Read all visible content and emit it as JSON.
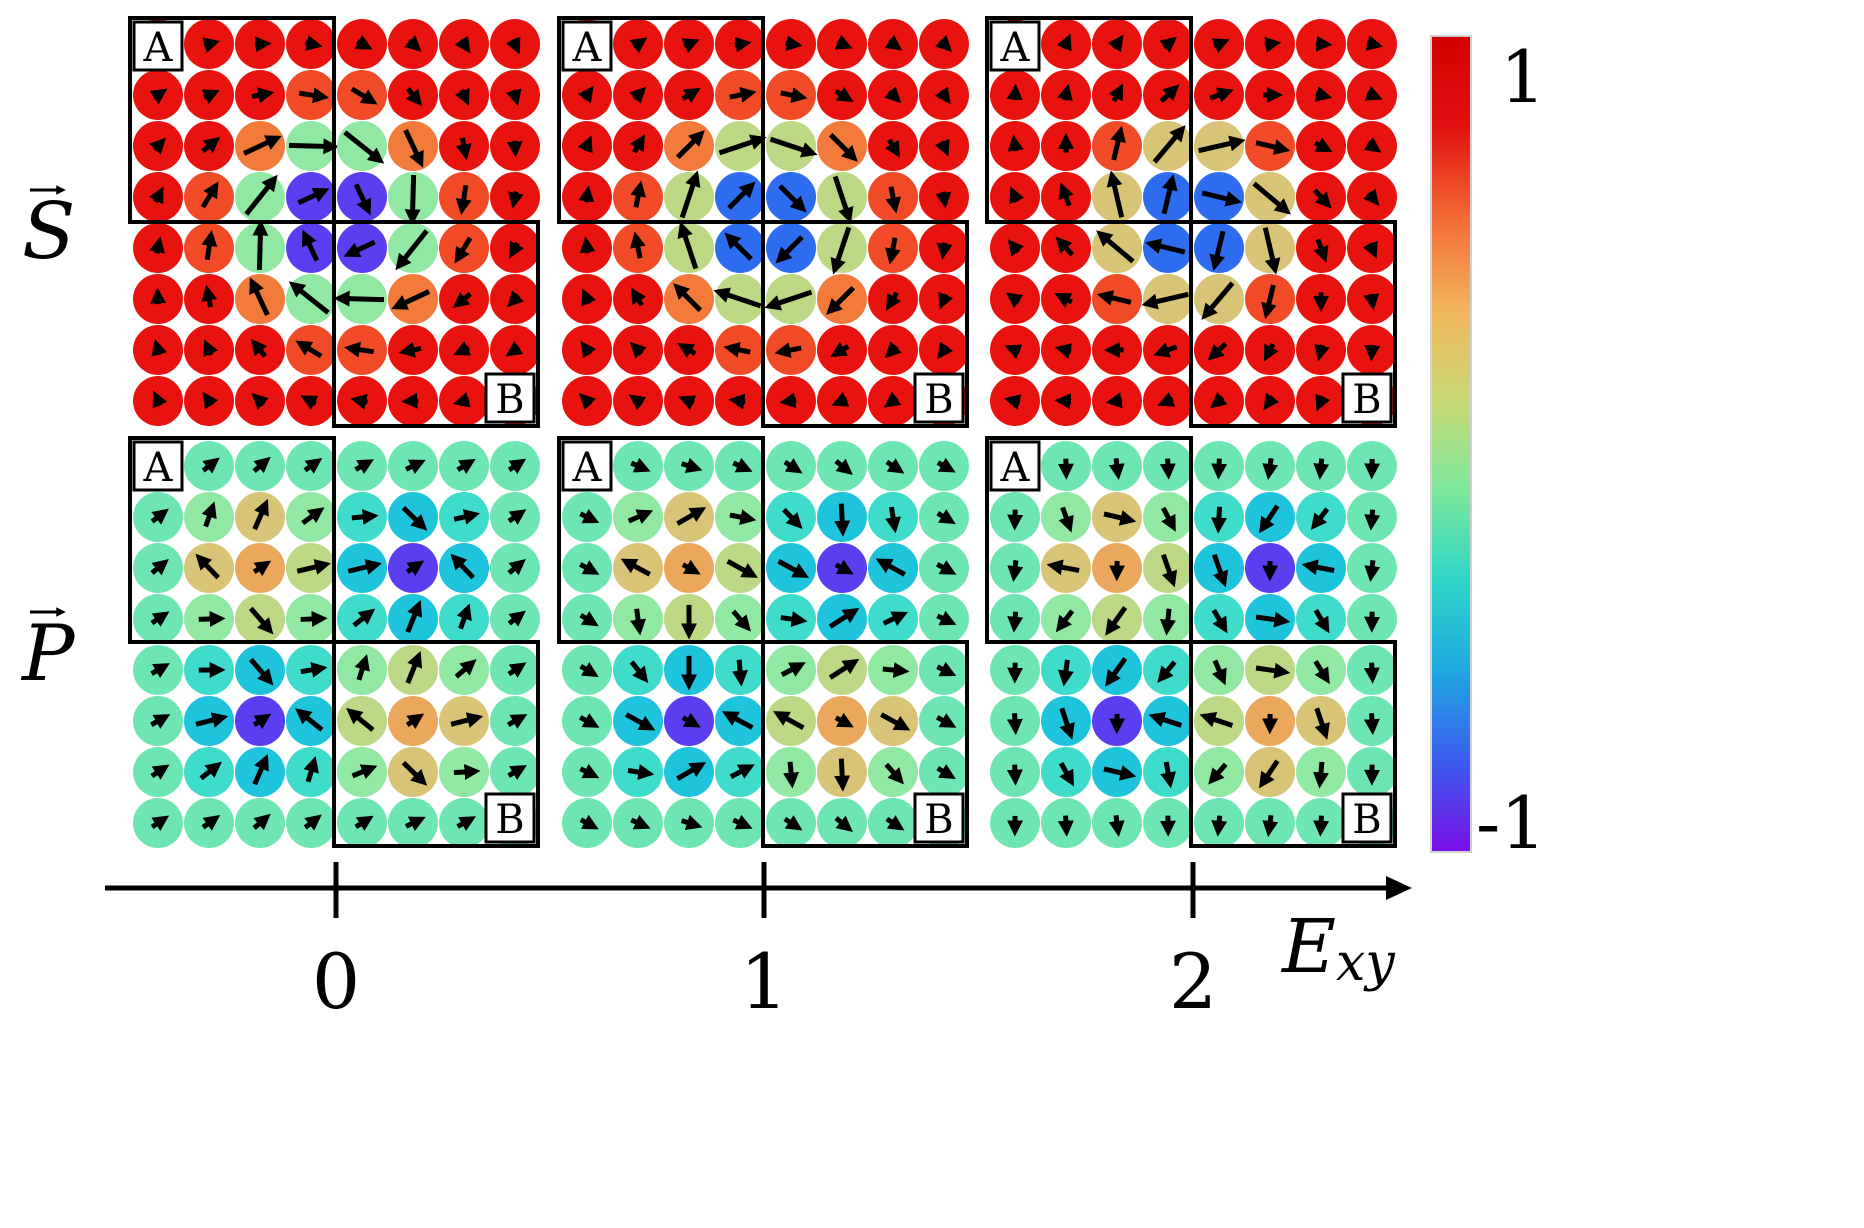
{
  "rows": [
    {
      "id": "S",
      "symbol": "S"
    },
    {
      "id": "P",
      "symbol": "P"
    }
  ],
  "panel_labels": {
    "a": "A",
    "b": "B"
  },
  "axis": {
    "label_main": "E",
    "label_sub": "xy",
    "ticks": [
      "0",
      "1",
      "2"
    ]
  },
  "colorbar": {
    "max_label": "1",
    "min_label": "-1",
    "stops": [
      "#7a0fe6",
      "#3a5cf0",
      "#1fa8e0",
      "#2fd6c8",
      "#7de89a",
      "#c9d773",
      "#f2b45a",
      "#f36a35",
      "#e01010",
      "#d40000"
    ]
  },
  "cell_colors": {
    "red": "#e8120e",
    "orange_red": "#f04a26",
    "orange": "#f27a3a",
    "light_orange": "#eba85c",
    "khaki": "#d8c476",
    "yellow_green": "#bcd884",
    "light_green": "#90e8a2",
    "mint": "#6ee6b4",
    "aqua": "#3fdccc",
    "cyan": "#1ec4dc",
    "sky": "#1c96ea",
    "blue": "#2e6cf0",
    "indigo": "#5a3ef0",
    "violet": "#7a10ea"
  }
}
